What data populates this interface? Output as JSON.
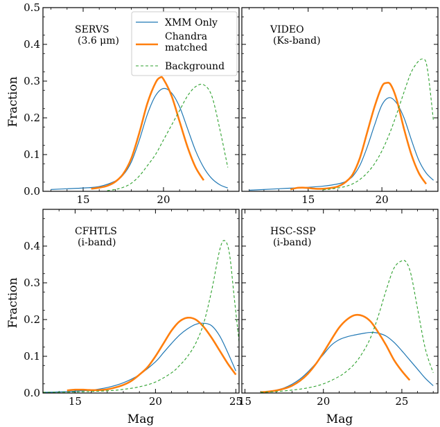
{
  "figure": {
    "ylabel": "Fraction",
    "xlabel": "Mag"
  },
  "legend": {
    "placement": "top-right of top-left panel",
    "entries": [
      {
        "label": "XMM Only",
        "color": "#1f77b4",
        "style": "solid-thin"
      },
      {
        "label": "Chandra\nmatched",
        "color": "#ff7f0e",
        "style": "solid-thick"
      },
      {
        "label": "Background",
        "color": "#2ca02c",
        "style": "dashed"
      }
    ]
  },
  "chart_data": [
    {
      "type": "line",
      "panel": "top-left",
      "label_lines": [
        "SERVS",
        "(3.6 μm)"
      ],
      "xlim": [
        12.5,
        24.7
      ],
      "ylim": [
        0,
        0.5
      ],
      "xticks": [
        15,
        20
      ],
      "yticks": [
        0.0,
        0.1,
        0.2,
        0.3,
        0.4,
        0.5
      ],
      "ytick_labels": [
        "0.0",
        "0.1",
        "0.2",
        "0.3",
        "0.4",
        "0.5"
      ],
      "show_yticklabels": true,
      "show_xticklabels": true,
      "series": [
        {
          "name": "XMM Only",
          "color": "#1f77b4",
          "x": [
            13,
            14,
            15,
            16,
            17,
            17.5,
            18,
            18.5,
            19,
            19.5,
            20,
            20.5,
            21,
            21.5,
            22,
            22.5,
            23,
            23.5,
            24
          ],
          "y": [
            0.005,
            0.007,
            0.009,
            0.013,
            0.028,
            0.045,
            0.08,
            0.14,
            0.21,
            0.26,
            0.28,
            0.268,
            0.23,
            0.17,
            0.11,
            0.065,
            0.035,
            0.018,
            0.009
          ]
        },
        {
          "name": "Chandra matched",
          "color": "#ff7f0e",
          "x": [
            15.5,
            16,
            16.5,
            17,
            17.5,
            18,
            18.5,
            19,
            19.5,
            19.8,
            20,
            20.5,
            21,
            21.5,
            22,
            22.5
          ],
          "y": [
            0.007,
            0.01,
            0.015,
            0.026,
            0.048,
            0.09,
            0.16,
            0.24,
            0.295,
            0.31,
            0.305,
            0.26,
            0.19,
            0.12,
            0.065,
            0.03
          ]
        },
        {
          "name": "Background",
          "color": "#2ca02c",
          "x": [
            16.5,
            17,
            17.5,
            18,
            18.5,
            19,
            19.5,
            20,
            20.5,
            21,
            21.5,
            22,
            22.5,
            23,
            23.5,
            24
          ],
          "y": [
            0.002,
            0.005,
            0.011,
            0.022,
            0.042,
            0.07,
            0.1,
            0.14,
            0.18,
            0.22,
            0.26,
            0.285,
            0.29,
            0.26,
            0.17,
            0.065
          ]
        }
      ]
    },
    {
      "type": "line",
      "panel": "top-right",
      "label_lines": [
        "VIDEO",
        "(Ks-band)"
      ],
      "xlim": [
        10.5,
        23.8
      ],
      "ylim": [
        0,
        0.5
      ],
      "xticks": [
        15,
        20
      ],
      "yticks": [
        0.0,
        0.1,
        0.2,
        0.3,
        0.4,
        0.5
      ],
      "ytick_labels": [
        "0.0",
        "0.1",
        "0.2",
        "0.3",
        "0.4",
        "0.5"
      ],
      "show_yticklabels": false,
      "show_xticklabels": true,
      "series": [
        {
          "name": "XMM Only",
          "color": "#1f77b4",
          "x": [
            11,
            12,
            13,
            14,
            15,
            16,
            17,
            17.5,
            18,
            18.5,
            19,
            19.5,
            20,
            20.5,
            21,
            21.5,
            22,
            22.5,
            23,
            23.5
          ],
          "y": [
            0.003,
            0.005,
            0.007,
            0.009,
            0.011,
            0.014,
            0.02,
            0.026,
            0.04,
            0.07,
            0.12,
            0.18,
            0.235,
            0.255,
            0.24,
            0.2,
            0.14,
            0.085,
            0.05,
            0.03
          ]
        },
        {
          "name": "Chandra matched",
          "color": "#ff7f0e",
          "x": [
            13.8,
            14.2,
            14.6,
            15,
            15.5,
            16,
            16.5,
            17,
            17.5,
            18,
            18.5,
            19,
            19.5,
            20,
            20.3,
            20.6,
            21,
            21.5,
            22,
            22.5,
            23
          ],
          "y": [
            0.005,
            0.009,
            0.01,
            0.009,
            0.007,
            0.007,
            0.009,
            0.013,
            0.024,
            0.045,
            0.09,
            0.16,
            0.23,
            0.285,
            0.295,
            0.29,
            0.25,
            0.17,
            0.1,
            0.05,
            0.02
          ]
        },
        {
          "name": "Background",
          "color": "#2ca02c",
          "x": [
            16,
            16.5,
            17,
            17.5,
            18,
            18.5,
            19,
            19.5,
            20,
            20.5,
            21,
            21.5,
            22,
            22.5,
            22.8,
            23,
            23.2,
            23.5
          ],
          "y": [
            0.004,
            0.006,
            0.009,
            0.013,
            0.02,
            0.032,
            0.05,
            0.075,
            0.11,
            0.155,
            0.21,
            0.27,
            0.325,
            0.355,
            0.36,
            0.35,
            0.3,
            0.19
          ]
        }
      ]
    },
    {
      "type": "line",
      "panel": "bottom-left",
      "label_lines": [
        "CFHTLS",
        "(i-band)"
      ],
      "xlim": [
        13,
        25.2
      ],
      "ylim": [
        0,
        0.5
      ],
      "xticks": [
        15,
        20,
        25
      ],
      "yticks": [
        0.0,
        0.1,
        0.2,
        0.3,
        0.4,
        0.5
      ],
      "ytick_labels": [
        "0.0",
        "0.1",
        "0.2",
        "0.3",
        "0.4",
        ""
      ],
      "show_yticklabels": true,
      "show_xticklabels": true,
      "series": [
        {
          "name": "XMM Only",
          "color": "#1f77b4",
          "x": [
            13,
            14,
            15,
            16,
            17,
            18,
            19,
            20,
            20.5,
            21,
            21.5,
            22,
            22.5,
            23,
            23.5,
            24,
            24.5,
            25
          ],
          "y": [
            0.002,
            0.003,
            0.005,
            0.008,
            0.015,
            0.028,
            0.05,
            0.085,
            0.11,
            0.135,
            0.158,
            0.175,
            0.187,
            0.19,
            0.183,
            0.155,
            0.11,
            0.06
          ]
        },
        {
          "name": "Chandra matched",
          "color": "#ff7f0e",
          "x": [
            14.5,
            15,
            15.5,
            16,
            16.5,
            17,
            17.5,
            18,
            18.5,
            19,
            19.5,
            20,
            20.5,
            21,
            21.5,
            22,
            22.5,
            23,
            23.5,
            24,
            24.5,
            25
          ],
          "y": [
            0.007,
            0.009,
            0.009,
            0.008,
            0.008,
            0.01,
            0.015,
            0.022,
            0.033,
            0.05,
            0.07,
            0.1,
            0.135,
            0.17,
            0.195,
            0.205,
            0.2,
            0.18,
            0.15,
            0.115,
            0.08,
            0.05
          ]
        },
        {
          "name": "Background",
          "color": "#2ca02c",
          "x": [
            13,
            15,
            17,
            18,
            19,
            20,
            21,
            21.5,
            22,
            22.5,
            23,
            23.5,
            24,
            24.3,
            24.6,
            24.9,
            25.2
          ],
          "y": [
            0.002,
            0.003,
            0.006,
            0.01,
            0.017,
            0.03,
            0.055,
            0.075,
            0.1,
            0.135,
            0.19,
            0.28,
            0.39,
            0.415,
            0.38,
            0.26,
            0.14
          ]
        }
      ]
    },
    {
      "type": "line",
      "panel": "bottom-right",
      "label_lines": [
        "HSC-SSP",
        "(i-band)"
      ],
      "xlim": [
        14.8,
        27.3
      ],
      "ylim": [
        0,
        0.5
      ],
      "xticks": [
        15,
        20,
        25
      ],
      "yticks": [
        0.0,
        0.1,
        0.2,
        0.3,
        0.4,
        0.5
      ],
      "ytick_labels": [
        "0.0",
        "0.1",
        "0.2",
        "0.3",
        "0.4",
        "0.5"
      ],
      "show_yticklabels": false,
      "show_xticklabels": true,
      "series": [
        {
          "name": "XMM Only",
          "color": "#1f77b4",
          "x": [
            16,
            16.5,
            17,
            17.5,
            18,
            18.5,
            19,
            19.5,
            20,
            20.5,
            21,
            21.5,
            22,
            22.5,
            23,
            23.5,
            24,
            24.5,
            25,
            25.5,
            26,
            26.5,
            27
          ],
          "y": [
            0.002,
            0.004,
            0.008,
            0.014,
            0.024,
            0.038,
            0.057,
            0.08,
            0.105,
            0.13,
            0.145,
            0.153,
            0.158,
            0.162,
            0.165,
            0.163,
            0.155,
            0.138,
            0.115,
            0.09,
            0.065,
            0.04,
            0.02
          ]
        },
        {
          "name": "Chandra matched",
          "color": "#ff7f0e",
          "x": [
            16,
            16.5,
            17,
            17.5,
            18,
            18.5,
            19,
            19.5,
            20,
            20.5,
            21,
            21.5,
            22,
            22.5,
            23,
            23.5,
            24,
            24.5,
            25,
            25.5
          ],
          "y": [
            0.002,
            0.004,
            0.007,
            0.012,
            0.02,
            0.033,
            0.052,
            0.078,
            0.11,
            0.145,
            0.178,
            0.2,
            0.212,
            0.21,
            0.195,
            0.165,
            0.13,
            0.09,
            0.06,
            0.035
          ]
        },
        {
          "name": "Background",
          "color": "#2ca02c",
          "x": [
            16,
            17,
            18,
            19,
            20,
            21,
            21.5,
            22,
            22.5,
            23,
            23.5,
            24,
            24.5,
            25,
            25.3,
            25.6,
            26,
            26.5,
            27
          ],
          "y": [
            0.002,
            0.004,
            0.008,
            0.014,
            0.025,
            0.045,
            0.06,
            0.08,
            0.11,
            0.15,
            0.21,
            0.28,
            0.34,
            0.36,
            0.355,
            0.32,
            0.23,
            0.12,
            0.055
          ]
        }
      ]
    }
  ]
}
